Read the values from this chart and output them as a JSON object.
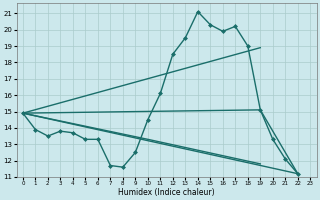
{
  "xlabel": "Humidex (Indice chaleur)",
  "bg_color": "#cce8ec",
  "grid_color": "#aacccc",
  "line_color": "#1a6e6a",
  "xlim": [
    -0.5,
    23.5
  ],
  "ylim": [
    11,
    21.6
  ],
  "yticks": [
    11,
    12,
    13,
    14,
    15,
    16,
    17,
    18,
    19,
    20,
    21
  ],
  "xticks": [
    0,
    1,
    2,
    3,
    4,
    5,
    6,
    7,
    8,
    9,
    10,
    11,
    12,
    13,
    14,
    15,
    16,
    17,
    18,
    19,
    20,
    21,
    22,
    23
  ],
  "series": [
    {
      "x": [
        0,
        1,
        2,
        3,
        4,
        5,
        6,
        7,
        8,
        9,
        10,
        11,
        12,
        13,
        14,
        15,
        16,
        17,
        18,
        19,
        20,
        21,
        22
      ],
      "y": [
        14.9,
        13.9,
        13.5,
        13.8,
        13.7,
        13.3,
        13.3,
        11.7,
        11.6,
        12.5,
        14.5,
        16.1,
        18.5,
        19.5,
        21.1,
        20.3,
        19.9,
        20.2,
        19.0,
        15.1,
        13.3,
        12.1,
        11.2
      ],
      "marker": "D",
      "markersize": 2.0,
      "linewidth": 1.0
    },
    {
      "x": [
        0,
        22
      ],
      "y": [
        14.9,
        11.2
      ],
      "marker": null,
      "markersize": 0,
      "linewidth": 1.0
    },
    {
      "x": [
        0,
        19
      ],
      "y": [
        14.9,
        18.9
      ],
      "marker": null,
      "markersize": 0,
      "linewidth": 1.0
    },
    {
      "x": [
        0,
        19,
        22
      ],
      "y": [
        14.9,
        15.1,
        11.2
      ],
      "marker": null,
      "markersize": 0,
      "linewidth": 1.0
    },
    {
      "x": [
        0,
        10,
        19
      ],
      "y": [
        14.9,
        13.3,
        11.8
      ],
      "marker": null,
      "markersize": 0,
      "linewidth": 1.0
    }
  ]
}
